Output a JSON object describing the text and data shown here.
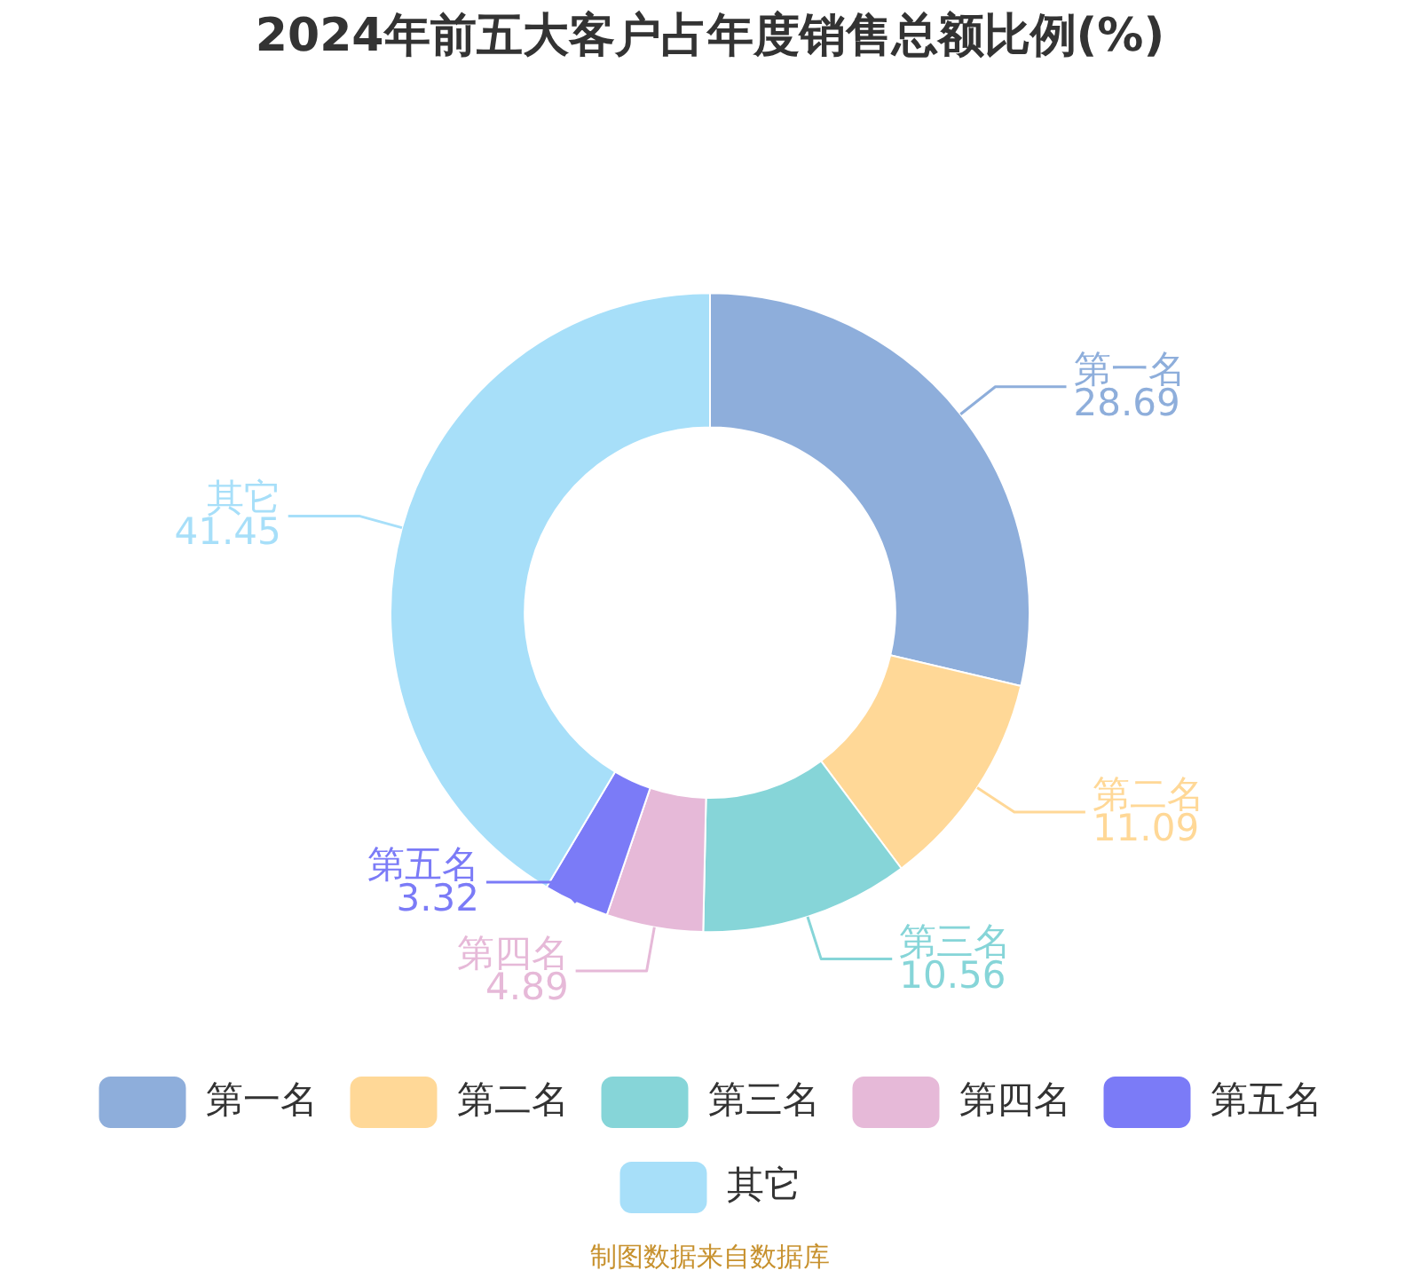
{
  "chart_data": {
    "type": "donut",
    "title": "2024年前五大客户占年度销售总额比例(%)",
    "categories": [
      "第一名",
      "第二名",
      "第三名",
      "第四名",
      "第五名",
      "其它"
    ],
    "values": [
      28.69,
      11.09,
      10.56,
      4.89,
      3.32,
      41.45
    ],
    "colors": [
      "#8eaedb",
      "#ffd897",
      "#86d5d8",
      "#e6b9d8",
      "#7b7bf7",
      "#a7dff9"
    ],
    "data_labels": true,
    "legend": "bottom",
    "annotations": [
      "制图数据来自数据库"
    ]
  }
}
